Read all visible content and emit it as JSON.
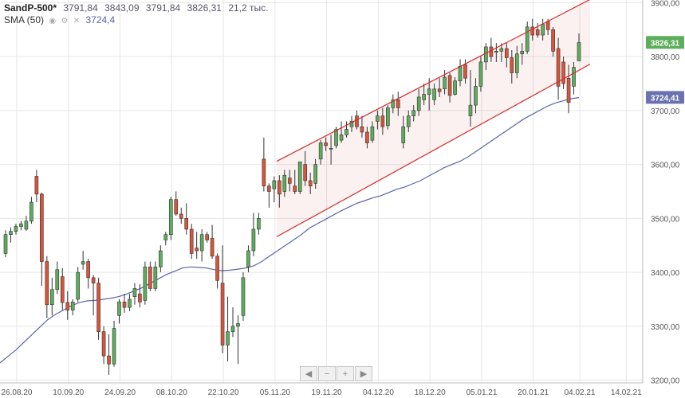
{
  "header": {
    "symbol": "SandP-500*",
    "open": "3791,84",
    "high": "3843,09",
    "low": "3791,84",
    "close": "3826,31",
    "volume": "21,2 тыс.",
    "sma_label": "SMA (50)",
    "sma_value": "3724,4"
  },
  "colors": {
    "up": "#5cae5c",
    "down": "#d9543a",
    "sma": "#5a64a8",
    "channel": "#d42a2a",
    "grid": "#e6e6e6",
    "badge_price": "#5cae5c",
    "badge_sma": "#6a73b0"
  },
  "badges": {
    "price": "3826,31",
    "sma": "3724,41"
  },
  "navigator": {
    "buttons": [
      "◀",
      "−",
      "+",
      "▶"
    ]
  },
  "chart_data": {
    "type": "candlestick",
    "ylim": [
      3195,
      3905
    ],
    "y_ticks": [
      "3900,00",
      "3800,00",
      "3700,00",
      "3600,00",
      "3500,00",
      "3400,00",
      "3300,00",
      "3200,00"
    ],
    "x_ticks": [
      "26.08.20",
      "10.09.20",
      "24.09.20",
      "08.10.20",
      "22.10.20",
      "05.11.20",
      "19.11.20",
      "04.12.20",
      "18.12.20",
      "05.01.21",
      "20.01.21",
      "04.02.21",
      "14.02.21"
    ],
    "candles": [
      [
        3435,
        3478,
        3428,
        3470
      ],
      [
        3470,
        3483,
        3455,
        3476
      ],
      [
        3476,
        3490,
        3470,
        3485
      ],
      [
        3485,
        3495,
        3478,
        3490
      ],
      [
        3480,
        3505,
        3477,
        3495
      ],
      [
        3495,
        3540,
        3490,
        3530
      ],
      [
        3578,
        3590,
        3530,
        3545
      ],
      [
        3545,
        3548,
        3375,
        3420
      ],
      [
        3420,
        3430,
        3315,
        3340
      ],
      [
        3340,
        3390,
        3320,
        3368
      ],
      [
        3368,
        3420,
        3360,
        3405
      ],
      [
        3392,
        3408,
        3330,
        3344
      ],
      [
        3344,
        3365,
        3312,
        3330
      ],
      [
        3330,
        3350,
        3320,
        3345
      ],
      [
        3350,
        3410,
        3345,
        3400
      ],
      [
        3415,
        3440,
        3405,
        3420
      ],
      [
        3420,
        3425,
        3370,
        3390
      ],
      [
        3390,
        3395,
        3320,
        3380
      ],
      [
        3380,
        3390,
        3275,
        3290
      ],
      [
        3290,
        3300,
        3230,
        3245
      ],
      [
        3245,
        3285,
        3210,
        3230
      ],
      [
        3230,
        3310,
        3225,
        3296
      ],
      [
        3320,
        3350,
        3305,
        3345
      ],
      [
        3345,
        3360,
        3325,
        3335
      ],
      [
        3335,
        3360,
        3328,
        3350
      ],
      [
        3355,
        3380,
        3340,
        3370
      ],
      [
        3360,
        3378,
        3335,
        3345
      ],
      [
        3348,
        3420,
        3340,
        3410
      ],
      [
        3410,
        3420,
        3365,
        3370
      ],
      [
        3370,
        3420,
        3365,
        3410
      ],
      [
        3410,
        3450,
        3400,
        3440
      ],
      [
        3460,
        3475,
        3450,
        3470
      ],
      [
        3470,
        3540,
        3460,
        3535
      ],
      [
        3535,
        3550,
        3505,
        3508
      ],
      [
        3508,
        3520,
        3490,
        3500
      ],
      [
        3500,
        3528,
        3470,
        3480
      ],
      [
        3480,
        3490,
        3425,
        3435
      ],
      [
        3445,
        3475,
        3425,
        3440
      ],
      [
        3440,
        3480,
        3420,
        3470
      ],
      [
        3470,
        3475,
        3455,
        3460
      ],
      [
        3463,
        3488,
        3425,
        3430
      ],
      [
        3430,
        3435,
        3370,
        3385
      ],
      [
        3380,
        3450,
        3250,
        3265
      ],
      [
        3265,
        3355,
        3235,
        3290
      ],
      [
        3290,
        3335,
        3280,
        3300
      ],
      [
        3300,
        3320,
        3230,
        3305
      ],
      [
        3320,
        3400,
        3310,
        3390
      ],
      [
        3410,
        3450,
        3400,
        3440
      ],
      [
        3440,
        3510,
        3430,
        3480
      ],
      [
        3480,
        3510,
        3470,
        3500
      ],
      [
        3610,
        3650,
        3550,
        3560
      ],
      [
        3560,
        3565,
        3520,
        3550
      ],
      [
        3555,
        3578,
        3530,
        3570
      ],
      [
        3570,
        3580,
        3520,
        3545
      ],
      [
        3550,
        3590,
        3540,
        3580
      ],
      [
        3575,
        3590,
        3550,
        3565
      ],
      [
        3560,
        3590,
        3545,
        3550
      ],
      [
        3550,
        3600,
        3545,
        3605
      ],
      [
        3600,
        3625,
        3560,
        3570
      ],
      [
        3570,
        3585,
        3545,
        3560
      ],
      [
        3565,
        3610,
        3555,
        3600
      ],
      [
        3610,
        3645,
        3600,
        3640
      ],
      [
        3640,
        3650,
        3625,
        3635
      ],
      [
        3630,
        3655,
        3600,
        3630
      ],
      [
        3635,
        3670,
        3630,
        3665
      ],
      [
        3645,
        3680,
        3640,
        3655
      ],
      [
        3655,
        3680,
        3650,
        3665
      ],
      [
        3670,
        3690,
        3660,
        3680
      ],
      [
        3690,
        3700,
        3665,
        3670
      ],
      [
        3670,
        3690,
        3650,
        3660
      ],
      [
        3660,
        3670,
        3630,
        3640
      ],
      [
        3645,
        3680,
        3640,
        3670
      ],
      [
        3680,
        3700,
        3665,
        3690
      ],
      [
        3690,
        3705,
        3655,
        3670
      ],
      [
        3672,
        3710,
        3665,
        3705
      ],
      [
        3705,
        3730,
        3695,
        3720
      ],
      [
        3720,
        3735,
        3690,
        3705
      ],
      [
        3640,
        3690,
        3630,
        3670
      ],
      [
        3670,
        3700,
        3660,
        3690
      ],
      [
        3690,
        3710,
        3680,
        3700
      ],
      [
        3700,
        3740,
        3690,
        3725
      ],
      [
        3720,
        3750,
        3710,
        3730
      ],
      [
        3730,
        3760,
        3700,
        3740
      ],
      [
        3720,
        3750,
        3710,
        3740
      ],
      [
        3740,
        3760,
        3725,
        3735
      ],
      [
        3740,
        3775,
        3730,
        3762
      ],
      [
        3765,
        3770,
        3715,
        3728
      ],
      [
        3730,
        3762,
        3728,
        3755
      ],
      [
        3755,
        3795,
        3745,
        3782
      ],
      [
        3785,
        3795,
        3750,
        3760
      ],
      [
        3690,
        3775,
        3670,
        3710
      ],
      [
        3710,
        3760,
        3695,
        3745
      ],
      [
        3745,
        3800,
        3735,
        3790
      ],
      [
        3790,
        3825,
        3775,
        3818
      ],
      [
        3818,
        3835,
        3790,
        3800
      ],
      [
        3808,
        3825,
        3790,
        3810
      ],
      [
        3810,
        3825,
        3790,
        3815
      ],
      [
        3815,
        3825,
        3780,
        3798
      ],
      [
        3798,
        3812,
        3750,
        3770
      ],
      [
        3770,
        3820,
        3760,
        3805
      ],
      [
        3805,
        3825,
        3785,
        3810
      ],
      [
        3810,
        3865,
        3805,
        3855
      ],
      [
        3855,
        3870,
        3830,
        3840
      ],
      [
        3850,
        3862,
        3835,
        3840
      ],
      [
        3840,
        3870,
        3830,
        3860
      ],
      [
        3865,
        3870,
        3840,
        3850
      ],
      [
        3850,
        3855,
        3800,
        3810
      ],
      [
        3815,
        3835,
        3720,
        3745
      ],
      [
        3790,
        3800,
        3740,
        3750
      ],
      [
        3760,
        3785,
        3695,
        3715
      ],
      [
        3745,
        3790,
        3730,
        3780
      ],
      [
        3792,
        3843,
        3792,
        3826
      ]
    ],
    "sma_50": [
      3232,
      3244,
      3256,
      3270,
      3284,
      3298,
      3312,
      3322,
      3330,
      3338,
      3344,
      3347,
      3348,
      3350,
      3352,
      3355,
      3360,
      3366,
      3372,
      3380,
      3388,
      3396,
      3402,
      3408,
      3410,
      3409,
      3408,
      3405,
      3403,
      3404,
      3406,
      3408,
      3412,
      3420,
      3430,
      3440,
      3450,
      3460,
      3470,
      3482,
      3490,
      3498,
      3506,
      3514,
      3521,
      3528,
      3533,
      3538,
      3542,
      3548,
      3554,
      3558,
      3564,
      3570,
      3578,
      3586,
      3594,
      3600,
      3606,
      3614,
      3624,
      3634,
      3644,
      3654,
      3664,
      3674,
      3684,
      3692,
      3700,
      3708,
      3714,
      3718,
      3722,
      3724
    ],
    "channel_upper": [
      [
        3606,
        3870
      ],
      [
        3906,
        3870
      ]
    ],
    "channel_lower": [
      [
        3466,
        3870
      ],
      [
        3786,
        3870
      ]
    ],
    "annotations": []
  }
}
